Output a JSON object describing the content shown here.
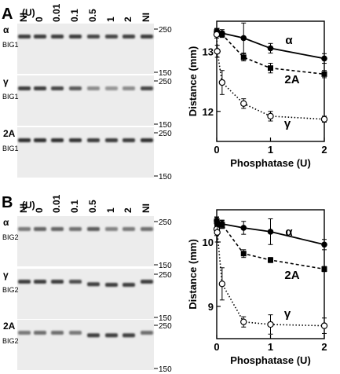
{
  "figure": {
    "panels": [
      {
        "label": "A",
        "lanes_header": "(U)",
        "lanes": [
          "NI",
          "0",
          "0.01",
          "0.1",
          "0.5",
          "1",
          "2",
          "NI"
        ],
        "blots": [
          {
            "name": "α",
            "sub": "BIG1",
            "markers": [
              "250",
              "150"
            ],
            "intensity": [
              0.85,
              0.85,
              0.85,
              0.85,
              0.8,
              0.8,
              0.82,
              0.85
            ],
            "offset": [
              0,
              0,
              0,
              0,
              0,
              0,
              0,
              0
            ]
          },
          {
            "name": "γ",
            "sub": "BIG1",
            "markers": [
              "250",
              "150"
            ],
            "intensity": [
              0.85,
              0.85,
              0.8,
              0.7,
              0.45,
              0.4,
              0.45,
              0.8
            ],
            "offset": [
              0,
              0,
              0,
              0,
              0,
              0,
              0,
              0
            ]
          },
          {
            "name": "2A",
            "sub": "BIG1",
            "markers": [
              "250",
              "150"
            ],
            "intensity": [
              0.9,
              0.9,
              0.9,
              0.88,
              0.85,
              0.85,
              0.85,
              0.9
            ],
            "offset": [
              0,
              0,
              0,
              0,
              0,
              0,
              0,
              0
            ]
          }
        ]
      },
      {
        "label": "B",
        "lanes_header": "(U)",
        "lanes": [
          "NI",
          "0",
          "0.01",
          "0.1",
          "0.5",
          "1",
          "2",
          "NI"
        ],
        "blots": [
          {
            "name": "α",
            "sub": "BIG2",
            "markers": [
              "250",
              "150"
            ],
            "intensity": [
              0.55,
              0.65,
              0.65,
              0.6,
              0.7,
              0.5,
              0.55,
              0.6
            ],
            "offset": [
              0,
              0,
              0,
              0,
              0,
              0,
              0,
              0
            ]
          },
          {
            "name": "γ",
            "sub": "BIG2",
            "markers": [
              "250",
              "150"
            ],
            "intensity": [
              0.85,
              0.85,
              0.85,
              0.75,
              0.85,
              0.85,
              0.85,
              0.85
            ],
            "offset": [
              0,
              0,
              0,
              0,
              0.4,
              0.5,
              0.5,
              0
            ]
          },
          {
            "name": "2A",
            "sub": "BIG2",
            "markers": [
              "250",
              "150"
            ],
            "intensity": [
              0.55,
              0.6,
              0.6,
              0.55,
              0.85,
              0.85,
              0.85,
              0.6
            ],
            "offset": [
              0,
              0,
              0,
              0,
              0.4,
              0.4,
              0.4,
              0
            ]
          }
        ]
      }
    ]
  },
  "chart_data": [
    {
      "type": "line",
      "panel": "A",
      "xlabel": "Phosphatase (U)",
      "ylabel": "Distance (mm)",
      "xlim": [
        0,
        2
      ],
      "ylim": [
        11.5,
        13.5
      ],
      "xticks": [
        "0",
        "1",
        "2"
      ],
      "yticks": [
        "12",
        "13"
      ],
      "grid": false,
      "legend": "inline labels at right",
      "series": [
        {
          "name": "α",
          "style": "solid",
          "marker": "filled-circle",
          "x": [
            0,
            0.01,
            0.1,
            0.5,
            1,
            2
          ],
          "y": [
            13.32,
            13.32,
            13.3,
            13.22,
            13.05,
            12.88
          ],
          "err": [
            0.06,
            0.06,
            0.06,
            0.25,
            0.08,
            0.08
          ]
        },
        {
          "name": "2A",
          "style": "dashed",
          "marker": "filled-square",
          "x": [
            0,
            0.01,
            0.1,
            0.5,
            1,
            2
          ],
          "y": [
            13.32,
            13.3,
            13.28,
            12.9,
            12.72,
            12.62
          ],
          "err": [
            0.05,
            0.05,
            0.05,
            0.06,
            0.08,
            0.06
          ]
        },
        {
          "name": "γ",
          "style": "dotted",
          "marker": "open-circle",
          "x": [
            0,
            0.01,
            0.1,
            0.5,
            1,
            2
          ],
          "y": [
            13.28,
            13.0,
            12.48,
            12.13,
            11.92,
            11.87
          ],
          "err": [
            0.06,
            0.1,
            0.2,
            0.08,
            0.08,
            0.05
          ]
        }
      ]
    },
    {
      "type": "line",
      "panel": "B",
      "xlabel": "Phosphatase (U)",
      "ylabel": "Distance (mm)",
      "xlim": [
        0,
        2
      ],
      "ylim": [
        8.5,
        10.5
      ],
      "xticks": [
        "0",
        "1",
        "2"
      ],
      "yticks": [
        "9",
        "10"
      ],
      "grid": false,
      "legend": "inline labels at right",
      "series": [
        {
          "name": "α",
          "style": "solid",
          "marker": "filled-circle",
          "x": [
            0,
            0.01,
            0.1,
            0.5,
            1,
            2
          ],
          "y": [
            10.33,
            10.3,
            10.28,
            10.22,
            10.16,
            9.96
          ],
          "err": [
            0.06,
            0.06,
            0.06,
            0.1,
            0.2,
            0.08
          ]
        },
        {
          "name": "2A",
          "style": "dashed",
          "marker": "filled-square",
          "x": [
            0,
            0.01,
            0.1,
            0.5,
            1,
            2
          ],
          "y": [
            10.32,
            10.25,
            10.27,
            9.82,
            9.72,
            9.58
          ],
          "err": [
            0.06,
            0.06,
            0.06,
            0.06,
            0.04,
            0.04
          ]
        },
        {
          "name": "γ",
          "style": "dotted",
          "marker": "open-circle",
          "x": [
            0,
            0.01,
            0.1,
            0.5,
            1,
            2
          ],
          "y": [
            10.2,
            10.15,
            9.35,
            8.76,
            8.72,
            8.7
          ],
          "err": [
            0.1,
            0.15,
            0.25,
            0.08,
            0.15,
            0.12
          ]
        }
      ]
    }
  ]
}
